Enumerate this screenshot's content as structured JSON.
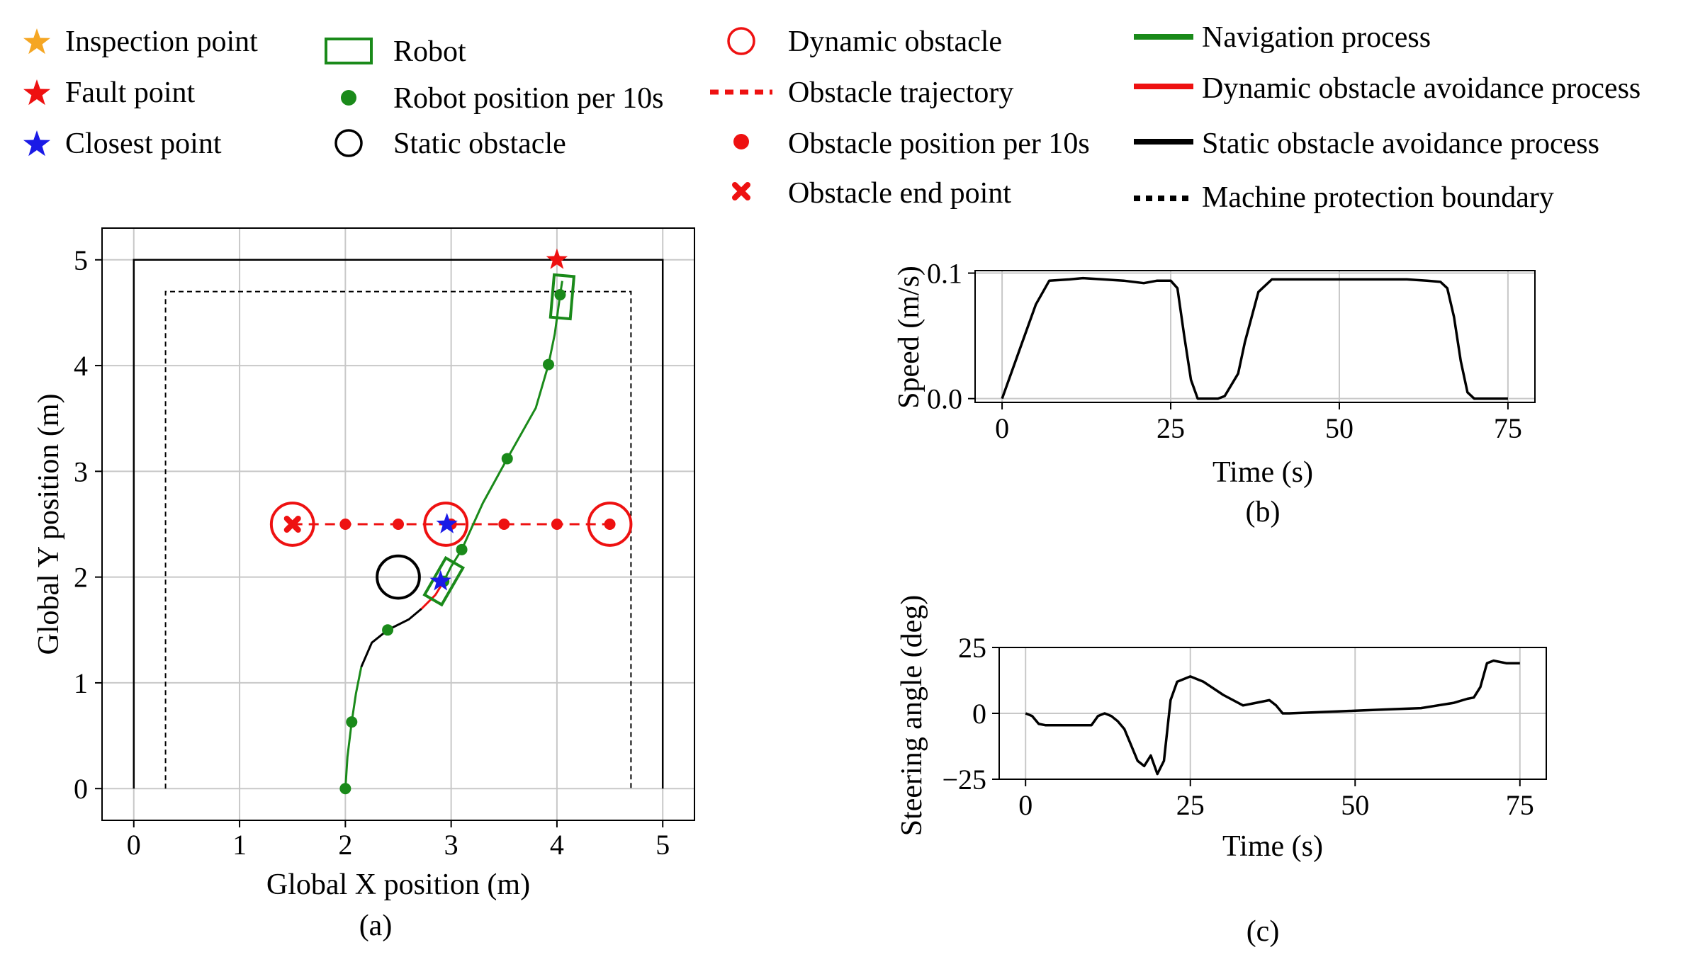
{
  "legend": [
    {
      "label": "Inspection point",
      "kind": "star",
      "color": "#f5a623"
    },
    {
      "label": "Fault point",
      "kind": "star",
      "color": "#ee1111"
    },
    {
      "label": "Closest point",
      "kind": "star",
      "color": "#1a1ae6"
    },
    {
      "label": "Robot",
      "kind": "rect",
      "color": "#1a8a1a"
    },
    {
      "label": "Robot position per 10s",
      "kind": "dot",
      "color": "#1a8a1a"
    },
    {
      "label": "Static obstacle",
      "kind": "circle",
      "color": "#000000"
    },
    {
      "label": "Dynamic obstacle",
      "kind": "circle",
      "color": "#ee1111"
    },
    {
      "label": "Obstacle trajectory",
      "kind": "dashed",
      "color": "#ee1111"
    },
    {
      "label": "Obstacle position per 10s",
      "kind": "dot",
      "color": "#ee1111"
    },
    {
      "label": "Obstacle end point",
      "kind": "x",
      "color": "#ee1111"
    },
    {
      "label": "Navigation process",
      "kind": "line",
      "color": "#1a8a1a"
    },
    {
      "label": "Dynamic obstacle avoidance process",
      "kind": "line",
      "color": "#ee1111"
    },
    {
      "label": "Static obstacle avoidance process",
      "kind": "line",
      "color": "#000000"
    },
    {
      "label": "Machine protection boundary",
      "kind": "dotted",
      "color": "#000000"
    }
  ],
  "chart_data": [
    {
      "type": "line",
      "caption": "(a)",
      "xlabel": "Global X position (m)",
      "ylabel": "Global Y position (m)",
      "xlim": [
        -0.3,
        5.3
      ],
      "ylim": [
        -0.3,
        5.3
      ],
      "xticks": [
        "0",
        "1",
        "2",
        "3",
        "4",
        "5"
      ],
      "yticks": [
        "0",
        "1",
        "2",
        "3",
        "4",
        "5"
      ],
      "grid": true,
      "boundary": [
        [
          0,
          0
        ],
        [
          0,
          5
        ],
        [
          5,
          5
        ],
        [
          5,
          0
        ]
      ],
      "protection_boundary": [
        [
          0.3,
          0
        ],
        [
          0.3,
          4.7
        ],
        [
          4.7,
          4.7
        ],
        [
          4.7,
          0
        ]
      ],
      "path_navigation_start": [
        [
          2.0,
          0.0
        ],
        [
          2.02,
          0.3
        ],
        [
          2.06,
          0.63
        ],
        [
          2.1,
          0.9
        ],
        [
          2.15,
          1.15
        ]
      ],
      "path_static_avoidance": [
        [
          2.15,
          1.15
        ],
        [
          2.25,
          1.38
        ],
        [
          2.4,
          1.5
        ],
        [
          2.6,
          1.6
        ],
        [
          2.72,
          1.7
        ]
      ],
      "path_dynamic_avoidance": [
        [
          2.72,
          1.7
        ],
        [
          2.85,
          1.83
        ],
        [
          2.93,
          1.96
        ]
      ],
      "path_navigation_end": [
        [
          2.93,
          1.96
        ],
        [
          3.0,
          2.1
        ],
        [
          3.1,
          2.26
        ],
        [
          3.3,
          2.7
        ],
        [
          3.53,
          3.12
        ],
        [
          3.8,
          3.6
        ],
        [
          3.92,
          4.01
        ],
        [
          3.98,
          4.3
        ],
        [
          4.03,
          4.67
        ],
        [
          4.05,
          4.8
        ]
      ],
      "robot_positions": [
        [
          2.0,
          0.0
        ],
        [
          2.06,
          0.63
        ],
        [
          2.4,
          1.5
        ],
        [
          2.93,
          1.96
        ],
        [
          3.1,
          2.26
        ],
        [
          3.53,
          3.12
        ],
        [
          3.92,
          4.01
        ],
        [
          4.03,
          4.67
        ]
      ],
      "static_obstacle": {
        "x": 2.5,
        "y": 2.0,
        "r": 0.2
      },
      "dynamic_obstacles": [
        {
          "x": 1.5,
          "y": 2.5,
          "r": 0.2
        },
        {
          "x": 2.95,
          "y": 2.5,
          "r": 0.2
        },
        {
          "x": 4.5,
          "y": 2.5,
          "r": 0.2
        }
      ],
      "obstacle_trajectory": [
        [
          1.5,
          2.5
        ],
        [
          4.5,
          2.5
        ]
      ],
      "obstacle_positions": [
        [
          2.0,
          2.5
        ],
        [
          2.5,
          2.5
        ],
        [
          3.0,
          2.5
        ],
        [
          3.5,
          2.5
        ],
        [
          4.0,
          2.5
        ],
        [
          4.5,
          2.5
        ]
      ],
      "obstacle_end_point": [
        1.5,
        2.5
      ],
      "fault_point": [
        4.0,
        5.0
      ],
      "closest_points": [
        [
          2.96,
          2.5
        ],
        [
          2.9,
          1.96
        ]
      ],
      "robots": [
        {
          "x": 2.93,
          "y": 1.96,
          "angle_deg": 30
        },
        {
          "x": 4.05,
          "y": 4.65,
          "angle_deg": 5
        }
      ]
    },
    {
      "type": "line",
      "caption": "(b)",
      "xlabel": "Time (s)",
      "ylabel": "Speed (m/s)",
      "xlim": [
        -4,
        79
      ],
      "ylim": [
        -0.003,
        0.102
      ],
      "xticks": [
        "0",
        "25",
        "50",
        "75"
      ],
      "yticks": [
        "0.0",
        "0.1"
      ],
      "grid": true,
      "x": [
        0,
        3,
        5,
        7,
        10,
        12,
        15,
        18,
        21,
        23,
        25,
        26,
        27,
        28,
        29,
        31,
        32,
        33,
        35,
        36,
        38,
        40,
        45,
        50,
        55,
        60,
        63,
        65,
        66,
        67,
        68,
        69,
        70,
        72,
        75
      ],
      "y": [
        0.0,
        0.045,
        0.075,
        0.094,
        0.095,
        0.096,
        0.095,
        0.094,
        0.092,
        0.094,
        0.094,
        0.088,
        0.05,
        0.015,
        0.0,
        0.0,
        0.0,
        0.002,
        0.02,
        0.045,
        0.085,
        0.095,
        0.095,
        0.095,
        0.095,
        0.095,
        0.094,
        0.093,
        0.088,
        0.065,
        0.03,
        0.005,
        0.0,
        0.0,
        0.0
      ]
    },
    {
      "type": "line",
      "caption": "(c)",
      "xlabel": "Time (s)",
      "ylabel": "Steering angle (deg)",
      "xlim": [
        -4,
        79
      ],
      "ylim": [
        -25,
        25
      ],
      "xticks": [
        "0",
        "25",
        "50",
        "75"
      ],
      "yticks": [
        "25",
        "0",
        "−25"
      ],
      "grid": true,
      "x": [
        0,
        1,
        2,
        3,
        5,
        7,
        10,
        11,
        12,
        13,
        14,
        15,
        16,
        17,
        18,
        19,
        20,
        21,
        22,
        23,
        24,
        25,
        27,
        30,
        33,
        35,
        37,
        38,
        39,
        40,
        45,
        50,
        55,
        60,
        65,
        67,
        68,
        69,
        70,
        71,
        73,
        75
      ],
      "y": [
        0,
        -1,
        -4,
        -4.5,
        -4.5,
        -4.5,
        -4.5,
        -1,
        0,
        -1,
        -3,
        -6,
        -12,
        -18,
        -20,
        -16,
        -23,
        -18,
        5,
        12,
        13,
        14,
        12,
        7,
        3,
        4,
        5,
        3,
        0,
        0,
        0.5,
        1,
        1.5,
        2,
        4,
        5.5,
        6,
        10,
        19,
        20,
        19,
        19
      ]
    }
  ]
}
